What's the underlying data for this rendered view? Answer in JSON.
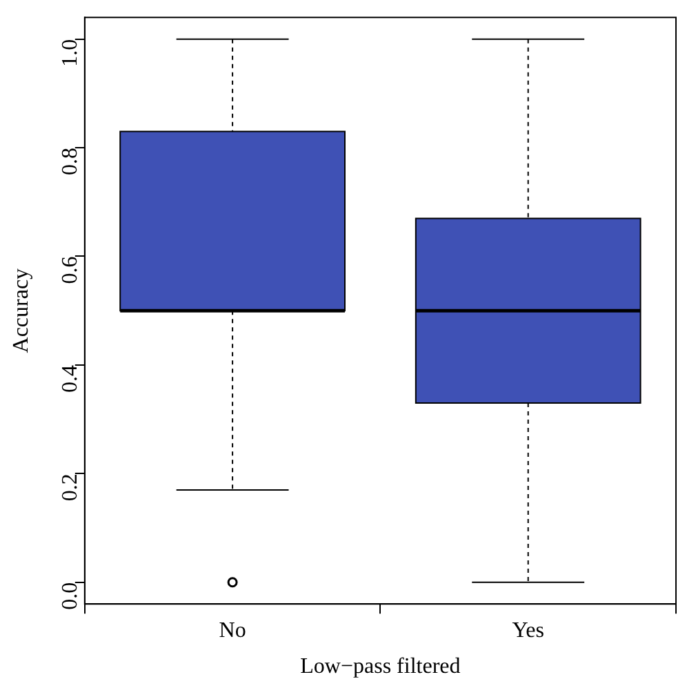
{
  "chart_data": {
    "type": "box",
    "xlabel": "Low−pass filtered",
    "ylabel": "Accuracy",
    "categories": [
      "No",
      "Yes"
    ],
    "color": "#3f51b5",
    "boxes": [
      {
        "low": 0.17,
        "q1": 0.5,
        "median": 0.5,
        "q3": 0.83,
        "high": 1.0,
        "outliers": [
          0.0
        ]
      },
      {
        "low": 0.0,
        "q1": 0.33,
        "median": 0.5,
        "q3": 0.67,
        "high": 1.0
      }
    ],
    "ylim": [
      -0.04,
      1.04
    ],
    "yticks": [
      {
        "value": 0,
        "label": "0.0"
      },
      0.2,
      0.4,
      0.6,
      0.8,
      {
        "value": 1,
        "label": "1.0"
      }
    ],
    "grid": false,
    "legend": false
  }
}
